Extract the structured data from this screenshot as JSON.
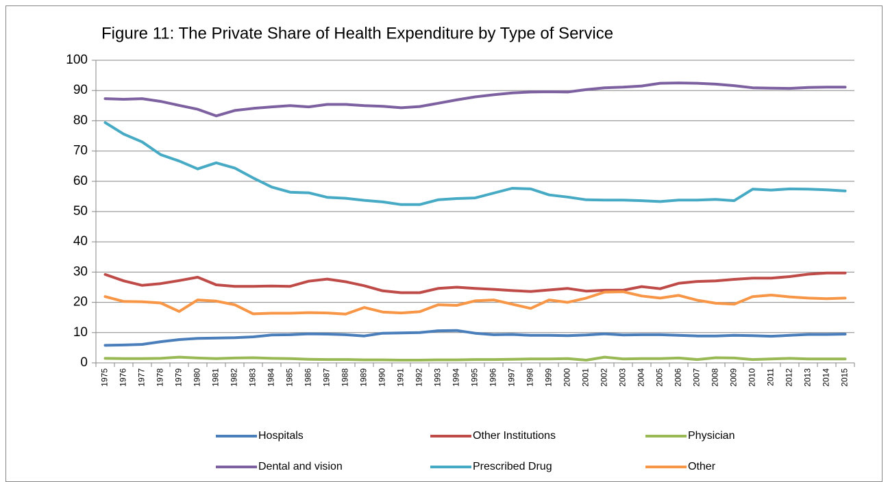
{
  "chart_data": {
    "type": "line",
    "title": "Figure 11: The Private Share of Health Expenditure by Type of Service",
    "categories": [
      "1975",
      "1976",
      "1977",
      "1978",
      "1979",
      "1980",
      "1981",
      "1982",
      "1983",
      "1984",
      "1985",
      "1986",
      "1987",
      "1988",
      "1989",
      "1990",
      "1991",
      "1992",
      "1993",
      "1994",
      "1995",
      "1996",
      "1997",
      "1998",
      "1999",
      "2000",
      "2001",
      "2002",
      "2003",
      "2004",
      "2005",
      "2006",
      "2007",
      "2008",
      "2009",
      "2010",
      "2011",
      "2012",
      "2013",
      "2014",
      "2015"
    ],
    "series": [
      {
        "name": "Hospitals",
        "color": "#4a7ebb",
        "values": [
          5.8,
          5.9,
          6.1,
          7.0,
          7.7,
          8.1,
          8.2,
          8.3,
          8.6,
          9.2,
          9.3,
          9.6,
          9.5,
          9.3,
          8.9,
          9.8,
          9.9,
          10.0,
          10.6,
          10.7,
          9.8,
          9.3,
          9.4,
          9.1,
          9.1,
          9.0,
          9.2,
          9.6,
          9.2,
          9.3,
          9.3,
          9.1,
          8.9,
          8.9,
          9.1,
          9.0,
          8.8,
          9.1,
          9.4,
          9.4,
          9.5
        ]
      },
      {
        "name": "Other Institutions",
        "color": "#be4b48",
        "values": [
          29.2,
          27.1,
          25.6,
          26.2,
          27.2,
          28.3,
          25.8,
          25.3,
          25.3,
          25.4,
          25.3,
          27.0,
          27.7,
          26.8,
          25.5,
          23.8,
          23.2,
          23.2,
          24.6,
          25.0,
          24.6,
          24.3,
          23.9,
          23.6,
          24.1,
          24.6,
          23.7,
          24.0,
          24.0,
          25.2,
          24.5,
          26.3,
          26.9,
          27.1,
          27.6,
          28.0,
          28.0,
          28.5,
          29.3,
          29.7,
          29.7
        ]
      },
      {
        "name": "Physician",
        "color": "#98b954",
        "values": [
          1.5,
          1.4,
          1.4,
          1.5,
          1.9,
          1.6,
          1.4,
          1.6,
          1.7,
          1.5,
          1.4,
          1.2,
          1.1,
          1.1,
          1.0,
          1.0,
          0.9,
          0.9,
          1.0,
          1.0,
          1.1,
          1.1,
          1.2,
          1.3,
          1.3,
          1.4,
          0.9,
          1.9,
          1.3,
          1.4,
          1.4,
          1.6,
          1.1,
          1.7,
          1.6,
          1.1,
          1.3,
          1.5,
          1.3,
          1.3,
          1.3
        ]
      },
      {
        "name": "Dental and vision",
        "color": "#7d60a0",
        "values": [
          87.3,
          87.1,
          87.3,
          86.4,
          85.1,
          83.8,
          81.6,
          83.4,
          84.1,
          84.6,
          85.0,
          84.6,
          85.4,
          85.4,
          85.0,
          84.8,
          84.3,
          84.7,
          85.8,
          86.9,
          87.9,
          88.6,
          89.2,
          89.5,
          89.6,
          89.5,
          90.3,
          90.9,
          91.1,
          91.5,
          92.4,
          92.5,
          92.4,
          92.1,
          91.6,
          90.9,
          90.8,
          90.7,
          91.0,
          91.1,
          91.1
        ]
      },
      {
        "name": "Prescribed Drug",
        "color": "#46aac5",
        "values": [
          79.4,
          75.6,
          73.0,
          68.8,
          66.7,
          64.1,
          66.1,
          64.4,
          61.1,
          58.1,
          56.4,
          56.2,
          54.7,
          54.4,
          53.7,
          53.2,
          52.3,
          52.3,
          53.9,
          54.3,
          54.5,
          56.1,
          57.7,
          57.5,
          55.5,
          54.8,
          53.9,
          53.8,
          53.8,
          53.6,
          53.3,
          53.8,
          53.8,
          54.0,
          53.6,
          57.4,
          57.1,
          57.5,
          57.4,
          57.2,
          56.8
        ]
      },
      {
        "name": "Other",
        "color": "#f79646",
        "values": [
          21.9,
          20.3,
          20.2,
          19.8,
          17.0,
          20.8,
          20.4,
          19.2,
          16.2,
          16.4,
          16.4,
          16.6,
          16.5,
          16.1,
          18.3,
          16.8,
          16.5,
          16.9,
          19.2,
          19.0,
          20.5,
          20.8,
          19.4,
          18.0,
          20.8,
          20.0,
          21.4,
          23.4,
          23.5,
          22.1,
          21.4,
          22.3,
          20.7,
          19.7,
          19.4,
          21.9,
          22.4,
          21.8,
          21.4,
          21.2,
          21.4
        ]
      }
    ],
    "ylim": [
      0,
      100
    ],
    "yticks": [
      0,
      10,
      20,
      30,
      40,
      50,
      60,
      70,
      80,
      90,
      100
    ],
    "grid": true,
    "legend": "bottom"
  }
}
